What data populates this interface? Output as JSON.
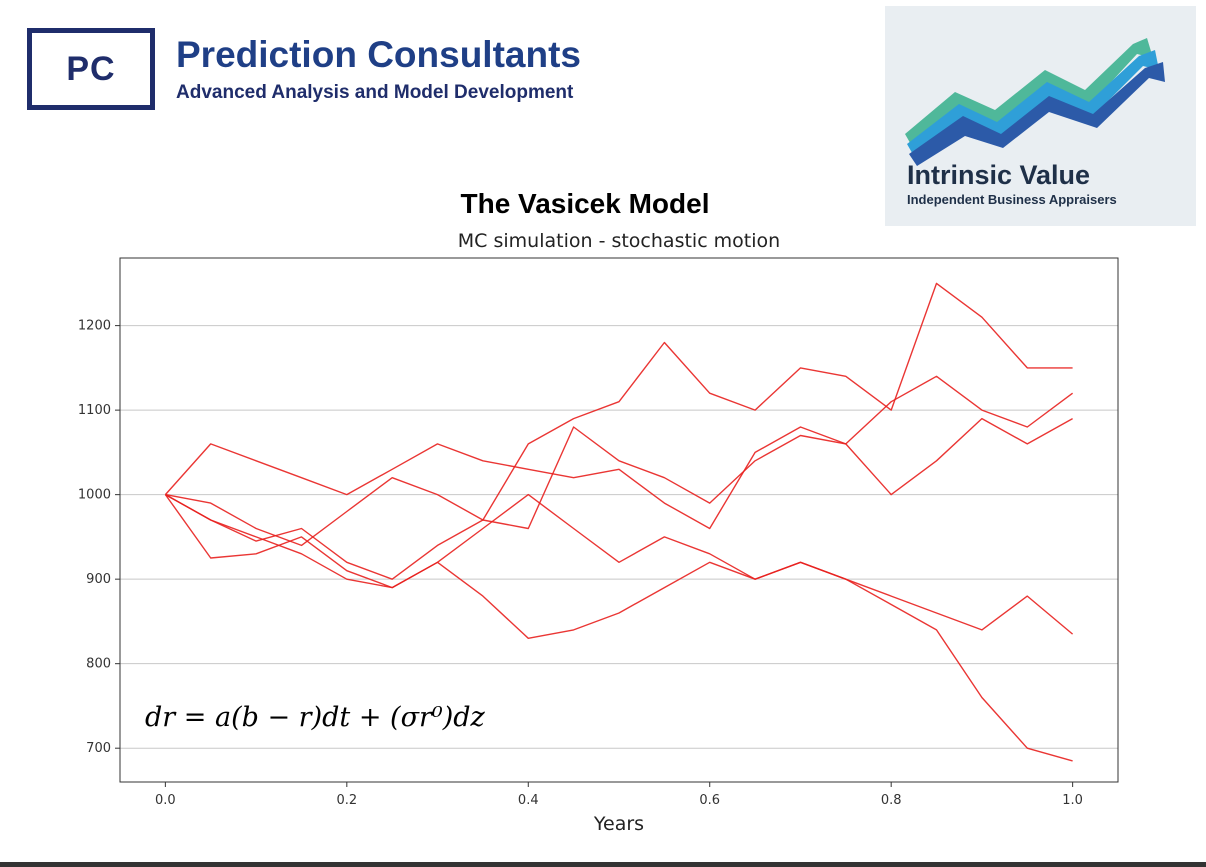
{
  "header": {
    "brand_initials": "PC",
    "brand_name": "Prediction Consultants",
    "brand_tagline": "Advanced Analysis and Model Development",
    "partner_name": "Intrinsic Value",
    "partner_tagline": "Independent Business Appraisers"
  },
  "slide_title": "The Vasicek Model",
  "formula": "dr = a(b − r)dt + (σr⁰)dz",
  "colors": {
    "series": "#e8201e",
    "brand": "#1f2d6b",
    "grid": "#c8c8c8"
  },
  "chart_data": {
    "type": "line",
    "title": "MC simulation - stochastic motion",
    "xlabel": "Years",
    "ylabel": "",
    "xlim": [
      -0.05,
      1.05
    ],
    "ylim": [
      660,
      1280
    ],
    "xticks": [
      0.0,
      0.2,
      0.4,
      0.6,
      0.8,
      1.0
    ],
    "xtick_labels": [
      "0.0",
      "0.2",
      "0.4",
      "0.6",
      "0.8",
      "1.0"
    ],
    "yticks": [
      700,
      800,
      900,
      1000,
      1100,
      1200
    ],
    "ytick_labels": [
      "700",
      "800",
      "900",
      "1000",
      "1100",
      "1200"
    ],
    "grid": "horizontal",
    "legend": "none",
    "series": [
      {
        "x": [
          0,
          0.05,
          0.1,
          0.15,
          0.2,
          0.25,
          0.3,
          0.35,
          0.4,
          0.45,
          0.5,
          0.55,
          0.6,
          0.65,
          0.7,
          0.75,
          0.8,
          0.85,
          0.9,
          0.95,
          1.0
        ],
        "values": [
          1000,
          970,
          945,
          960,
          920,
          900,
          940,
          970,
          1060,
          1090,
          1110,
          1180,
          1120,
          1100,
          1150,
          1140,
          1100,
          1250,
          1210,
          1150,
          1150
        ]
      },
      {
        "x": [
          0,
          0.05,
          0.1,
          0.15,
          0.2,
          0.25,
          0.3,
          0.35,
          0.4,
          0.45,
          0.5,
          0.55,
          0.6,
          0.65,
          0.7,
          0.75,
          0.8,
          0.85,
          0.9,
          0.95,
          1.0
        ],
        "values": [
          1000,
          990,
          960,
          940,
          980,
          1020,
          1000,
          970,
          960,
          1080,
          1040,
          1020,
          990,
          1040,
          1070,
          1060,
          1110,
          1140,
          1100,
          1080,
          1120
        ]
      },
      {
        "x": [
          0,
          0.05,
          0.1,
          0.15,
          0.2,
          0.25,
          0.3,
          0.35,
          0.4,
          0.45,
          0.5,
          0.55,
          0.6,
          0.65,
          0.7,
          0.75,
          0.8,
          0.85,
          0.9,
          0.95,
          1.0
        ],
        "values": [
          1000,
          1060,
          1040,
          1020,
          1000,
          1030,
          1060,
          1040,
          1030,
          1020,
          1030,
          990,
          960,
          1050,
          1080,
          1060,
          1000,
          1040,
          1090,
          1060,
          1090
        ]
      },
      {
        "x": [
          0,
          0.05,
          0.1,
          0.15,
          0.2,
          0.25,
          0.3,
          0.35,
          0.4,
          0.45,
          0.5,
          0.55,
          0.6,
          0.65,
          0.7,
          0.75,
          0.8,
          0.85,
          0.9,
          0.95,
          1.0
        ],
        "values": [
          1000,
          970,
          950,
          930,
          900,
          890,
          920,
          960,
          1000,
          960,
          920,
          950,
          930,
          900,
          920,
          900,
          880,
          860,
          840,
          880,
          835
        ]
      },
      {
        "x": [
          0,
          0.05,
          0.1,
          0.15,
          0.2,
          0.25,
          0.3,
          0.35,
          0.4,
          0.45,
          0.5,
          0.55,
          0.6,
          0.65,
          0.7,
          0.75,
          0.8,
          0.85,
          0.9,
          0.95,
          1.0
        ],
        "values": [
          1000,
          925,
          930,
          950,
          910,
          890,
          920,
          880,
          830,
          840,
          860,
          890,
          920,
          900,
          920,
          900,
          870,
          840,
          760,
          700,
          685
        ]
      }
    ]
  }
}
